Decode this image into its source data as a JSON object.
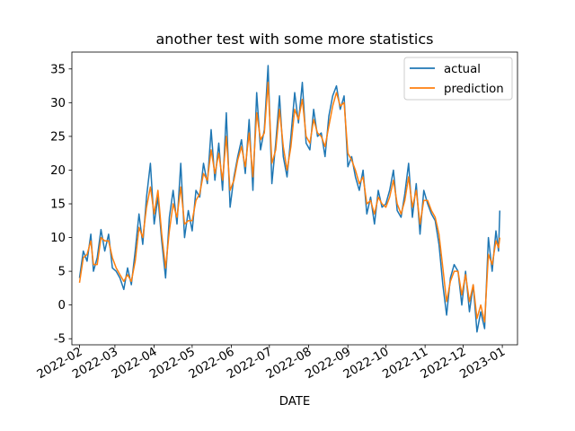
{
  "chart_data": {
    "type": "line",
    "title": "another test with some more statistics",
    "xlabel": "DATE",
    "ylabel": "",
    "xlim": [
      "2022-01-26",
      "2023-01-13"
    ],
    "ylim": [
      -5.9,
      37.5
    ],
    "x_ticks": [
      "2022-02",
      "2022-03",
      "2022-04",
      "2022-05",
      "2022-06",
      "2022-07",
      "2022-08",
      "2022-09",
      "2022-10",
      "2022-11",
      "2022-12",
      "2023-01"
    ],
    "y_ticks": [
      -5,
      0,
      5,
      10,
      15,
      20,
      25,
      30,
      35
    ],
    "grid": false,
    "legend_position": "upper right",
    "series": [
      {
        "name": "actual",
        "color": "#1f77b4",
        "points": [
          [
            "2022-02-01",
            4.0
          ],
          [
            "2022-02-04",
            8.0
          ],
          [
            "2022-02-07",
            6.5
          ],
          [
            "2022-02-10",
            10.5
          ],
          [
            "2022-02-12",
            5.0
          ],
          [
            "2022-02-15",
            7.0
          ],
          [
            "2022-02-18",
            11.2
          ],
          [
            "2022-02-21",
            8.0
          ],
          [
            "2022-02-24",
            10.5
          ],
          [
            "2022-02-27",
            5.5
          ],
          [
            "2022-03-02",
            5.0
          ],
          [
            "2022-03-05",
            4.0
          ],
          [
            "2022-03-08",
            2.3
          ],
          [
            "2022-03-11",
            5.5
          ],
          [
            "2022-03-14",
            3.0
          ],
          [
            "2022-03-17",
            8.0
          ],
          [
            "2022-03-20",
            13.5
          ],
          [
            "2022-03-23",
            9.0
          ],
          [
            "2022-03-26",
            16.0
          ],
          [
            "2022-03-29",
            21.0
          ],
          [
            "2022-04-01",
            12.0
          ],
          [
            "2022-04-04",
            16.0
          ],
          [
            "2022-04-07",
            9.5
          ],
          [
            "2022-04-10",
            4.0
          ],
          [
            "2022-04-13",
            13.0
          ],
          [
            "2022-04-16",
            17.0
          ],
          [
            "2022-04-19",
            12.0
          ],
          [
            "2022-04-22",
            21.0
          ],
          [
            "2022-04-25",
            10.0
          ],
          [
            "2022-04-28",
            14.0
          ],
          [
            "2022-05-01",
            11.0
          ],
          [
            "2022-05-04",
            17.0
          ],
          [
            "2022-05-07",
            16.0
          ],
          [
            "2022-05-10",
            21.0
          ],
          [
            "2022-05-13",
            18.0
          ],
          [
            "2022-05-16",
            26.0
          ],
          [
            "2022-05-19",
            18.5
          ],
          [
            "2022-05-22",
            24.0
          ],
          [
            "2022-05-25",
            17.0
          ],
          [
            "2022-05-28",
            28.5
          ],
          [
            "2022-05-31",
            14.5
          ],
          [
            "2022-06-03",
            19.0
          ],
          [
            "2022-06-06",
            22.0
          ],
          [
            "2022-06-09",
            24.5
          ],
          [
            "2022-06-12",
            19.5
          ],
          [
            "2022-06-15",
            27.5
          ],
          [
            "2022-06-18",
            17.0
          ],
          [
            "2022-06-21",
            31.5
          ],
          [
            "2022-06-24",
            23.0
          ],
          [
            "2022-06-27",
            26.0
          ],
          [
            "2022-06-30",
            35.5
          ],
          [
            "2022-07-03",
            18.0
          ],
          [
            "2022-07-06",
            24.0
          ],
          [
            "2022-07-09",
            31.0
          ],
          [
            "2022-07-12",
            22.0
          ],
          [
            "2022-07-15",
            19.0
          ],
          [
            "2022-07-18",
            25.0
          ],
          [
            "2022-07-21",
            31.5
          ],
          [
            "2022-07-24",
            27.0
          ],
          [
            "2022-07-27",
            33.0
          ],
          [
            "2022-07-30",
            24.0
          ],
          [
            "2022-08-02",
            23.0
          ],
          [
            "2022-08-05",
            29.0
          ],
          [
            "2022-08-08",
            25.0
          ],
          [
            "2022-08-11",
            25.5
          ],
          [
            "2022-08-14",
            22.0
          ],
          [
            "2022-08-17",
            28.0
          ],
          [
            "2022-08-20",
            31.0
          ],
          [
            "2022-08-23",
            32.5
          ],
          [
            "2022-08-26",
            29.0
          ],
          [
            "2022-08-29",
            31.0
          ],
          [
            "2022-09-01",
            20.5
          ],
          [
            "2022-09-04",
            22.0
          ],
          [
            "2022-09-07",
            19.0
          ],
          [
            "2022-09-10",
            17.0
          ],
          [
            "2022-09-13",
            20.0
          ],
          [
            "2022-09-16",
            13.5
          ],
          [
            "2022-09-19",
            16.0
          ],
          [
            "2022-09-22",
            12.0
          ],
          [
            "2022-09-25",
            17.0
          ],
          [
            "2022-09-28",
            14.5
          ],
          [
            "2022-10-01",
            15.0
          ],
          [
            "2022-10-04",
            17.0
          ],
          [
            "2022-10-07",
            20.0
          ],
          [
            "2022-10-10",
            14.0
          ],
          [
            "2022-10-13",
            13.0
          ],
          [
            "2022-10-16",
            16.5
          ],
          [
            "2022-10-19",
            21.0
          ],
          [
            "2022-10-22",
            13.0
          ],
          [
            "2022-10-25",
            18.0
          ],
          [
            "2022-10-28",
            10.5
          ],
          [
            "2022-10-31",
            17.0
          ],
          [
            "2022-11-03",
            15.0
          ],
          [
            "2022-11-06",
            13.5
          ],
          [
            "2022-11-09",
            12.5
          ],
          [
            "2022-11-12",
            9.0
          ],
          [
            "2022-11-15",
            3.0
          ],
          [
            "2022-11-18",
            -1.5
          ],
          [
            "2022-11-21",
            4.0
          ],
          [
            "2022-11-24",
            6.0
          ],
          [
            "2022-11-27",
            5.0
          ],
          [
            "2022-11-30",
            0.0
          ],
          [
            "2022-12-03",
            5.0
          ],
          [
            "2022-12-06",
            -1.0
          ],
          [
            "2022-12-09",
            3.0
          ],
          [
            "2022-12-12",
            -4.0
          ],
          [
            "2022-12-15",
            -1.0
          ],
          [
            "2022-12-18",
            -3.5
          ],
          [
            "2022-12-21",
            10.0
          ],
          [
            "2022-12-24",
            5.0
          ],
          [
            "2022-12-27",
            11.0
          ],
          [
            "2022-12-29",
            8.0
          ],
          [
            "2022-12-30",
            14.0
          ]
        ]
      },
      {
        "name": "prediction",
        "color": "#ff7f0e",
        "points": [
          [
            "2022-02-01",
            3.3
          ],
          [
            "2022-02-04",
            7.0
          ],
          [
            "2022-02-07",
            7.5
          ],
          [
            "2022-02-10",
            9.5
          ],
          [
            "2022-02-12",
            6.0
          ],
          [
            "2022-02-15",
            6.0
          ],
          [
            "2022-02-18",
            10.0
          ],
          [
            "2022-02-21",
            9.5
          ],
          [
            "2022-02-24",
            9.5
          ],
          [
            "2022-02-27",
            7.0
          ],
          [
            "2022-03-02",
            5.5
          ],
          [
            "2022-03-05",
            4.5
          ],
          [
            "2022-03-08",
            3.5
          ],
          [
            "2022-03-11",
            4.5
          ],
          [
            "2022-03-14",
            3.5
          ],
          [
            "2022-03-17",
            6.5
          ],
          [
            "2022-03-20",
            11.5
          ],
          [
            "2022-03-23",
            10.0
          ],
          [
            "2022-03-26",
            14.5
          ],
          [
            "2022-03-29",
            17.5
          ],
          [
            "2022-04-01",
            13.5
          ],
          [
            "2022-04-04",
            17.0
          ],
          [
            "2022-04-07",
            10.5
          ],
          [
            "2022-04-10",
            5.5
          ],
          [
            "2022-04-13",
            11.0
          ],
          [
            "2022-04-16",
            15.0
          ],
          [
            "2022-04-19",
            13.0
          ],
          [
            "2022-04-22",
            17.5
          ],
          [
            "2022-04-25",
            12.0
          ],
          [
            "2022-04-28",
            12.5
          ],
          [
            "2022-05-01",
            12.5
          ],
          [
            "2022-05-04",
            15.5
          ],
          [
            "2022-05-07",
            16.5
          ],
          [
            "2022-05-10",
            19.5
          ],
          [
            "2022-05-13",
            18.5
          ],
          [
            "2022-05-16",
            23.0
          ],
          [
            "2022-05-19",
            19.5
          ],
          [
            "2022-05-22",
            22.5
          ],
          [
            "2022-05-25",
            18.5
          ],
          [
            "2022-05-28",
            25.0
          ],
          [
            "2022-05-31",
            17.0
          ],
          [
            "2022-06-03",
            18.5
          ],
          [
            "2022-06-06",
            21.5
          ],
          [
            "2022-06-09",
            23.5
          ],
          [
            "2022-06-12",
            20.5
          ],
          [
            "2022-06-15",
            25.5
          ],
          [
            "2022-06-18",
            19.0
          ],
          [
            "2022-06-21",
            28.5
          ],
          [
            "2022-06-24",
            24.5
          ],
          [
            "2022-06-27",
            25.5
          ],
          [
            "2022-06-30",
            33.0
          ],
          [
            "2022-07-03",
            21.0
          ],
          [
            "2022-07-06",
            23.0
          ],
          [
            "2022-07-09",
            29.0
          ],
          [
            "2022-07-12",
            23.5
          ],
          [
            "2022-07-15",
            20.0
          ],
          [
            "2022-07-18",
            23.5
          ],
          [
            "2022-07-21",
            29.0
          ],
          [
            "2022-07-24",
            27.5
          ],
          [
            "2022-07-27",
            30.5
          ],
          [
            "2022-07-30",
            25.0
          ],
          [
            "2022-08-02",
            24.0
          ],
          [
            "2022-08-05",
            27.5
          ],
          [
            "2022-08-08",
            25.5
          ],
          [
            "2022-08-11",
            25.0
          ],
          [
            "2022-08-14",
            23.5
          ],
          [
            "2022-08-17",
            26.5
          ],
          [
            "2022-08-20",
            29.5
          ],
          [
            "2022-08-23",
            31.5
          ],
          [
            "2022-08-26",
            29.5
          ],
          [
            "2022-08-29",
            30.0
          ],
          [
            "2022-09-01",
            22.5
          ],
          [
            "2022-09-04",
            21.5
          ],
          [
            "2022-09-07",
            20.0
          ],
          [
            "2022-09-10",
            18.0
          ],
          [
            "2022-09-13",
            19.0
          ],
          [
            "2022-09-16",
            15.0
          ],
          [
            "2022-09-19",
            15.5
          ],
          [
            "2022-09-22",
            13.5
          ],
          [
            "2022-09-25",
            16.0
          ],
          [
            "2022-09-28",
            15.0
          ],
          [
            "2022-10-01",
            14.5
          ],
          [
            "2022-10-04",
            16.0
          ],
          [
            "2022-10-07",
            18.5
          ],
          [
            "2022-10-10",
            15.0
          ],
          [
            "2022-10-13",
            13.5
          ],
          [
            "2022-10-16",
            15.5
          ],
          [
            "2022-10-19",
            19.0
          ],
          [
            "2022-10-22",
            14.5
          ],
          [
            "2022-10-25",
            17.0
          ],
          [
            "2022-10-28",
            12.0
          ],
          [
            "2022-10-31",
            15.5
          ],
          [
            "2022-11-03",
            15.5
          ],
          [
            "2022-11-06",
            14.0
          ],
          [
            "2022-11-09",
            13.0
          ],
          [
            "2022-11-12",
            10.5
          ],
          [
            "2022-11-15",
            5.5
          ],
          [
            "2022-11-18",
            0.5
          ],
          [
            "2022-11-21",
            3.5
          ],
          [
            "2022-11-24",
            5.0
          ],
          [
            "2022-11-27",
            5.0
          ],
          [
            "2022-11-30",
            1.5
          ],
          [
            "2022-12-03",
            4.5
          ],
          [
            "2022-12-06",
            0.5
          ],
          [
            "2022-12-09",
            3.0
          ],
          [
            "2022-12-12",
            -2.0
          ],
          [
            "2022-12-15",
            0.0
          ],
          [
            "2022-12-18",
            -2.5
          ],
          [
            "2022-12-21",
            7.5
          ],
          [
            "2022-12-24",
            6.0
          ],
          [
            "2022-12-27",
            9.5
          ],
          [
            "2022-12-29",
            8.5
          ],
          [
            "2022-12-30",
            10.0
          ]
        ]
      }
    ]
  }
}
